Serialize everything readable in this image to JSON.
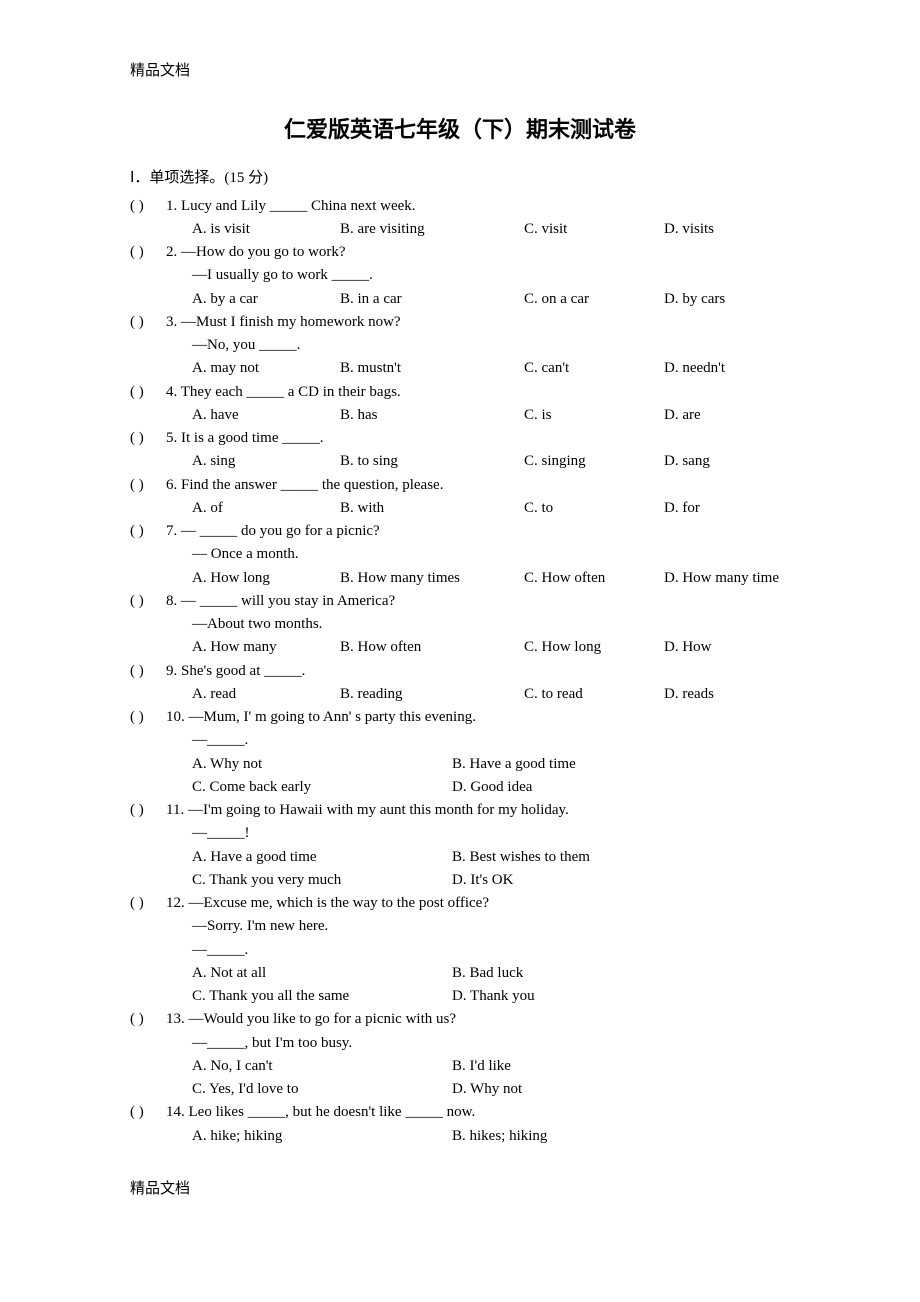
{
  "header_top": "精品文档",
  "footer_bottom": "精品文档",
  "title": "仁爱版英语七年级（下）期末测试卷",
  "section_label": "Ⅰ．单项选择。(15 分)",
  "paren_open": "(",
  "paren_close": ")",
  "questions": [
    {
      "num": "1",
      "stem": "Lucy and Lily _____ China next week.",
      "opts4": {
        "a": "A. is visit",
        "b": "B. are visiting",
        "c": "C. visit",
        "d": "D. visits"
      }
    },
    {
      "num": "2",
      "stem": "—How do you go to work?",
      "extra": [
        "—I usually go to work _____."
      ],
      "opts4": {
        "a": "A. by a car",
        "b": "B. in a car",
        "c": "C. on a car",
        "d": "D. by cars"
      }
    },
    {
      "num": "3",
      "stem": "—Must I finish my homework now?",
      "extra": [
        "—No, you _____."
      ],
      "opts4": {
        "a": "A. may not",
        "b": "B. mustn't",
        "c": "C. can't",
        "d": "D. needn't"
      }
    },
    {
      "num": "4",
      "stem": "  They each _____ a CD in their bags.",
      "opts4": {
        "a": "A. have",
        "b": "B. has",
        "c": "C. is",
        "d": "D. are"
      }
    },
    {
      "num": "5",
      "stem": "It is a good time _____.",
      "opts4": {
        "a": "A. sing",
        "b": "B. to sing",
        "c": "C. singing",
        "d": "D. sang"
      }
    },
    {
      "num": "6",
      "stem": "Find the answer _____ the question, please.",
      "opts4": {
        "a": "A. of",
        "b": "B. with",
        "c": "C. to",
        "d": "D. for"
      }
    },
    {
      "num": "7",
      "stem": "— _____ do you go for a picnic?",
      "extra": [
        "— Once a month."
      ],
      "opts4": {
        "a": "A. How long",
        "b": "B. How many times",
        "c": "C. How often",
        "d": "D. How many time"
      }
    },
    {
      "num": "8",
      "stem": "— _____ will you stay in America?",
      "extra": [
        "—About two months."
      ],
      "opts4": {
        "a": "A. How many",
        "b": "B. How often",
        "c": "C. How long",
        "d": "D. How"
      }
    },
    {
      "num": "9",
      "stem": "She's good at _____.",
      "opts4": {
        "a": "A. read",
        "b": "B. reading",
        "c": "C. to read",
        "d": "D. reads"
      }
    },
    {
      "num": "10",
      "stem": "—Mum, I' m going to Ann' s party this evening.",
      "extra": [
        "—_____."
      ],
      "opts2": [
        {
          "l": "A. Why not",
          "r": "B. Have a good time"
        },
        {
          "l": "C. Come back early",
          "r": "D. Good idea"
        }
      ]
    },
    {
      "num": "11",
      "stem": "—I'm going to Hawaii with my aunt this month for my holiday.",
      "extra": [
        "—_____!"
      ],
      "opts2": [
        {
          "l": "A. Have a good time",
          "r": "B. Best wishes to them"
        },
        {
          "l": "C. Thank you very much",
          "r": "D. It's OK"
        }
      ]
    },
    {
      "num": "12",
      "stem": "—Excuse me, which is the way to the post office?",
      "extra": [
        "—Sorry. I'm new here.",
        "—_____."
      ],
      "opts2": [
        {
          "l": "A. Not at all",
          "r": "B. Bad luck"
        },
        {
          "l": "C. Thank you all the same",
          "r": "D. Thank you"
        }
      ]
    },
    {
      "num": "13",
      "stem": "—Would you like to go for a picnic with us?",
      "extra": [
        "—_____, but I'm too busy."
      ],
      "opts2": [
        {
          "l": "A. No, I can't",
          "r": "B. I'd like"
        },
        {
          "l": "C. Yes, I'd love to",
          "r": "D. Why not"
        }
      ]
    },
    {
      "num": "14",
      "stem": "Leo likes _____, but he doesn't like _____ now.",
      "opts2": [
        {
          "l": "A. hike; hiking",
          "r": "B. hikes; hiking"
        }
      ]
    }
  ]
}
